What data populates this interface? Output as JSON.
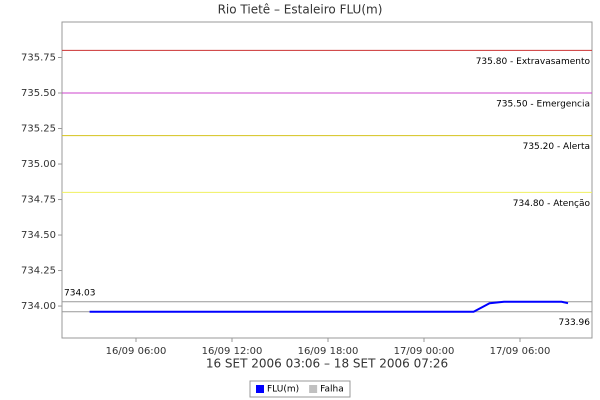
{
  "chart_data": {
    "type": "line",
    "title": "Rio Tietê – Estaleiro FLU(m)",
    "x_label": "16 SET 2006 03:06 – 18 SET 2006 07:26",
    "x": [
      3.1,
      6,
      9,
      12,
      15,
      18,
      21,
      24,
      27.1,
      27.6,
      28.1,
      29,
      30,
      31,
      32.6,
      33
    ],
    "series": [
      {
        "name": "FLU(m)",
        "color": "#0000ff",
        "values": [
          733.96,
          733.96,
          733.96,
          733.96,
          733.96,
          733.96,
          733.96,
          733.96,
          733.96,
          733.99,
          734.02,
          734.03,
          734.03,
          734.03,
          734.03,
          734.02
        ]
      },
      {
        "name": "Falha",
        "color": "#c0c0c0",
        "values": [
          null,
          null,
          null,
          null,
          null,
          null,
          null,
          null,
          null,
          null,
          null,
          null,
          null,
          null,
          null,
          null
        ]
      }
    ],
    "xlim": [
      1.375,
      34.5
    ],
    "xticks": [
      {
        "value": 6,
        "label": "16/09 06:00"
      },
      {
        "value": 12,
        "label": "16/09 12:00"
      },
      {
        "value": 18,
        "label": "16/09 18:00"
      },
      {
        "value": 24,
        "label": "17/09 00:00"
      },
      {
        "value": 30,
        "label": "17/09 06:00"
      }
    ],
    "ylim": [
      733.775,
      736.0
    ],
    "yticks": [
      {
        "value": 734,
        "label": "734.00"
      },
      {
        "value": 734.25,
        "label": "734.25"
      },
      {
        "value": 734.5,
        "label": "734.50"
      },
      {
        "value": 734.75,
        "label": "734.75"
      },
      {
        "value": 735,
        "label": "735.00"
      },
      {
        "value": 735.25,
        "label": "735.25"
      },
      {
        "value": 735.5,
        "label": "735.50"
      },
      {
        "value": 735.75,
        "label": "735.75"
      }
    ],
    "thresholds": [
      {
        "value": 735.8,
        "label": "735.80 - Extravasamento",
        "color": "#cc3333"
      },
      {
        "value": 735.5,
        "label": "735.50 - Emergencia",
        "color": "#cc44cc"
      },
      {
        "value": 735.2,
        "label": "735.20 - Alerta",
        "color": "#d4c21c"
      },
      {
        "value": 734.8,
        "label": "734.80 - Atenção",
        "color": "#f0f060"
      }
    ],
    "range_lines": [
      {
        "value": 734.03,
        "label": "734.03"
      },
      {
        "value": 733.96,
        "label": "733.96"
      }
    ]
  }
}
